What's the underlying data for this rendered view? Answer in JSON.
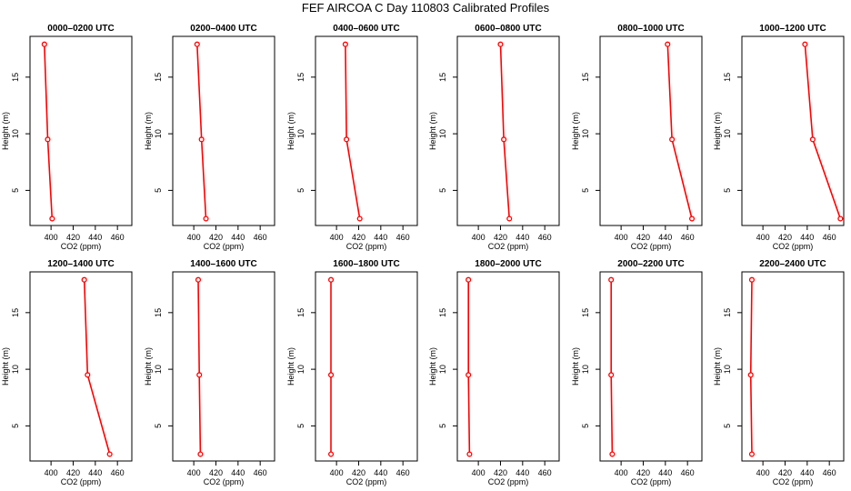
{
  "page_title": "FEF AIRCOA C  Day 110803  Calibrated Profiles",
  "colors": {
    "series": "#ff0000",
    "axis": "#000000"
  },
  "chart_data": [
    {
      "type": "line",
      "title": "0000–0200 UTC",
      "xlabel": "CO2 (ppm)",
      "ylabel": "Height (m)",
      "xlim": [
        381,
        473
      ],
      "ylim": [
        1.9,
        18.6
      ],
      "xticks": [
        400,
        420,
        440,
        460
      ],
      "yticks": [
        5,
        10,
        15
      ],
      "grid": false,
      "series": [
        {
          "values": [
            {
              "x": 394,
              "y": 17.9
            },
            {
              "x": 397,
              "y": 9.5
            },
            {
              "x": 401,
              "y": 2.5
            }
          ]
        }
      ]
    },
    {
      "type": "line",
      "title": "0200–0400 UTC",
      "xlabel": "CO2 (ppm)",
      "ylabel": "Height (m)",
      "xlim": [
        381,
        473
      ],
      "ylim": [
        1.9,
        18.6
      ],
      "xticks": [
        400,
        420,
        440,
        460
      ],
      "yticks": [
        5,
        10,
        15
      ],
      "grid": false,
      "series": [
        {
          "values": [
            {
              "x": 403,
              "y": 17.9
            },
            {
              "x": 407,
              "y": 9.5
            },
            {
              "x": 411,
              "y": 2.5
            }
          ]
        }
      ]
    },
    {
      "type": "line",
      "title": "0400–0600 UTC",
      "xlabel": "CO2 (ppm)",
      "ylabel": "Height (m)",
      "xlim": [
        381,
        473
      ],
      "ylim": [
        1.9,
        18.6
      ],
      "xticks": [
        400,
        420,
        440,
        460
      ],
      "yticks": [
        5,
        10,
        15
      ],
      "grid": false,
      "series": [
        {
          "values": [
            {
              "x": 408,
              "y": 17.9
            },
            {
              "x": 409,
              "y": 9.5
            },
            {
              "x": 421,
              "y": 2.5
            }
          ]
        }
      ]
    },
    {
      "type": "line",
      "title": "0600–0800 UTC",
      "xlabel": "CO2 (ppm)",
      "ylabel": "Height (m)",
      "xlim": [
        381,
        473
      ],
      "ylim": [
        1.9,
        18.6
      ],
      "xticks": [
        400,
        420,
        440,
        460
      ],
      "yticks": [
        5,
        10,
        15
      ],
      "grid": false,
      "series": [
        {
          "values": [
            {
              "x": 420,
              "y": 17.9
            },
            {
              "x": 423,
              "y": 9.5
            },
            {
              "x": 428,
              "y": 2.5
            }
          ]
        }
      ]
    },
    {
      "type": "line",
      "title": "0800–1000 UTC",
      "xlabel": "CO2 (ppm)",
      "ylabel": "Height (m)",
      "xlim": [
        381,
        473
      ],
      "ylim": [
        1.9,
        18.6
      ],
      "xticks": [
        400,
        420,
        440,
        460
      ],
      "yticks": [
        5,
        10,
        15
      ],
      "grid": false,
      "series": [
        {
          "values": [
            {
              "x": 442,
              "y": 17.9
            },
            {
              "x": 446,
              "y": 9.5
            },
            {
              "x": 464,
              "y": 2.5
            }
          ]
        }
      ]
    },
    {
      "type": "line",
      "title": "1000–1200 UTC",
      "xlabel": "CO2 (ppm)",
      "ylabel": "Height (m)",
      "xlim": [
        381,
        473
      ],
      "ylim": [
        1.9,
        18.6
      ],
      "xticks": [
        400,
        420,
        440,
        460
      ],
      "yticks": [
        5,
        10,
        15
      ],
      "grid": false,
      "series": [
        {
          "values": [
            {
              "x": 438,
              "y": 17.9
            },
            {
              "x": 445,
              "y": 9.5
            },
            {
              "x": 470,
              "y": 2.5
            }
          ]
        }
      ]
    },
    {
      "type": "line",
      "title": "1200–1400 UTC",
      "xlabel": "CO2 (ppm)",
      "ylabel": "Height (m)",
      "xlim": [
        381,
        473
      ],
      "ylim": [
        1.9,
        18.6
      ],
      "xticks": [
        400,
        420,
        440,
        460
      ],
      "yticks": [
        5,
        10,
        15
      ],
      "grid": false,
      "series": [
        {
          "values": [
            {
              "x": 430,
              "y": 17.9
            },
            {
              "x": 433,
              "y": 9.5
            },
            {
              "x": 453,
              "y": 2.5
            }
          ]
        }
      ]
    },
    {
      "type": "line",
      "title": "1400–1600 UTC",
      "xlabel": "CO2 (ppm)",
      "ylabel": "Height (m)",
      "xlim": [
        381,
        473
      ],
      "ylim": [
        1.9,
        18.6
      ],
      "xticks": [
        400,
        420,
        440,
        460
      ],
      "yticks": [
        5,
        10,
        15
      ],
      "grid": false,
      "series": [
        {
          "values": [
            {
              "x": 404,
              "y": 17.9
            },
            {
              "x": 405,
              "y": 9.5
            },
            {
              "x": 406,
              "y": 2.5
            }
          ]
        }
      ]
    },
    {
      "type": "line",
      "title": "1600–1800 UTC",
      "xlabel": "CO2 (ppm)",
      "ylabel": "Height (m)",
      "xlim": [
        381,
        473
      ],
      "ylim": [
        1.9,
        18.6
      ],
      "xticks": [
        400,
        420,
        440,
        460
      ],
      "yticks": [
        5,
        10,
        15
      ],
      "grid": false,
      "series": [
        {
          "values": [
            {
              "x": 395,
              "y": 17.9
            },
            {
              "x": 395,
              "y": 9.5
            },
            {
              "x": 395,
              "y": 2.5
            }
          ]
        }
      ]
    },
    {
      "type": "line",
      "title": "1800–2000 UTC",
      "xlabel": "CO2 (ppm)",
      "ylabel": "Height (m)",
      "xlim": [
        381,
        473
      ],
      "ylim": [
        1.9,
        18.6
      ],
      "xticks": [
        400,
        420,
        440,
        460
      ],
      "yticks": [
        5,
        10,
        15
      ],
      "grid": false,
      "series": [
        {
          "values": [
            {
              "x": 391,
              "y": 17.9
            },
            {
              "x": 391,
              "y": 9.5
            },
            {
              "x": 392,
              "y": 2.5
            }
          ]
        }
      ]
    },
    {
      "type": "line",
      "title": "2000–2200 UTC",
      "xlabel": "CO2 (ppm)",
      "ylabel": "Height (m)",
      "xlim": [
        381,
        473
      ],
      "ylim": [
        1.9,
        18.6
      ],
      "xticks": [
        400,
        420,
        440,
        460
      ],
      "yticks": [
        5,
        10,
        15
      ],
      "grid": false,
      "series": [
        {
          "values": [
            {
              "x": 391,
              "y": 17.9
            },
            {
              "x": 391,
              "y": 9.5
            },
            {
              "x": 392,
              "y": 2.5
            }
          ]
        }
      ]
    },
    {
      "type": "line",
      "title": "2200–2400 UTC",
      "xlabel": "CO2 (ppm)",
      "ylabel": "Height (m)",
      "xlim": [
        381,
        473
      ],
      "ylim": [
        1.9,
        18.6
      ],
      "xticks": [
        400,
        420,
        440,
        460
      ],
      "yticks": [
        5,
        10,
        15
      ],
      "grid": false,
      "series": [
        {
          "values": [
            {
              "x": 390,
              "y": 17.9
            },
            {
              "x": 389,
              "y": 9.5
            },
            {
              "x": 390,
              "y": 2.5
            }
          ]
        }
      ]
    }
  ]
}
